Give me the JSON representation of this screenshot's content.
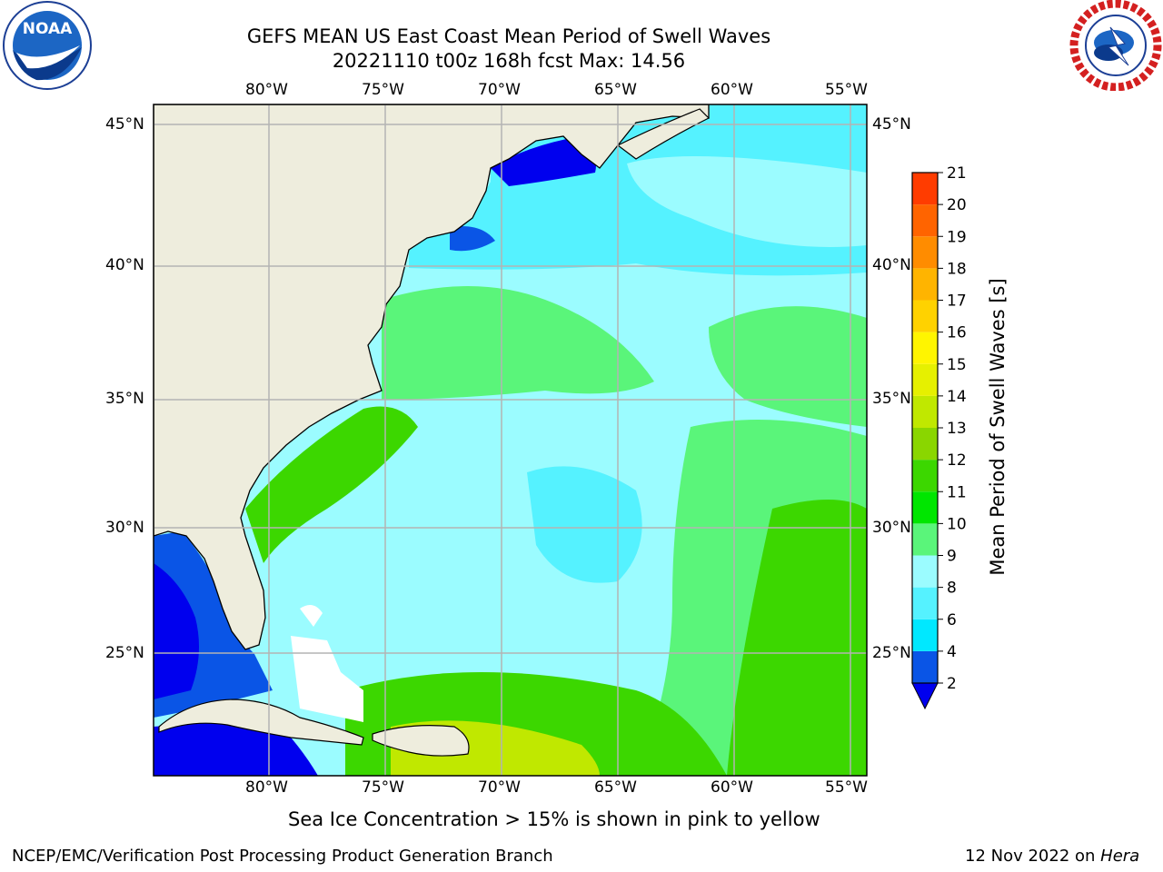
{
  "header": {
    "title_line1": "GEFS MEAN US East Coast Mean Period of Swell Waves",
    "title_line2": "20221110 t00z 168h fcst   Max: 14.56"
  },
  "logos": {
    "left": {
      "name": "noaa-logo",
      "text": "NOAA"
    },
    "right": {
      "name": "nws-logo",
      "text": "NATIONAL WEATHER SERVICE"
    }
  },
  "map": {
    "lon_labels": [
      "80°W",
      "75°W",
      "70°W",
      "65°W",
      "60°W",
      "55°W"
    ],
    "lat_labels": [
      "45°N",
      "40°N",
      "35°N",
      "30°N",
      "25°N"
    ],
    "colors": {
      "land": "#eeeddd",
      "grid": "#b3b3b3",
      "coast": "#000000"
    }
  },
  "colorbar": {
    "label": "Mean Period of Swell Waves [s]",
    "tick_labels": [
      "2",
      "4",
      "6",
      "8",
      "9",
      "10",
      "11",
      "12",
      "13",
      "14",
      "15",
      "16",
      "17",
      "18",
      "19",
      "20",
      "21"
    ],
    "colors": [
      "#0a55e6",
      "#00e8ff",
      "#55f2ff",
      "#9bfcff",
      "#5af57a",
      "#00e600",
      "#3cd700",
      "#8ad600",
      "#c0e800",
      "#e6f000",
      "#fff500",
      "#ffd200",
      "#ffb400",
      "#ff8c00",
      "#ff6400",
      "#ff3c00",
      "#ff0000"
    ],
    "under_color": "#0000ee"
  },
  "notes": {
    "sea_ice": "Sea Ice Concentration > 15% is shown in pink to yellow"
  },
  "footer": {
    "left": "NCEP/EMC/Verification Post Processing Product Generation Branch",
    "date": "12 Nov 2022 on",
    "machine": "Hera"
  }
}
